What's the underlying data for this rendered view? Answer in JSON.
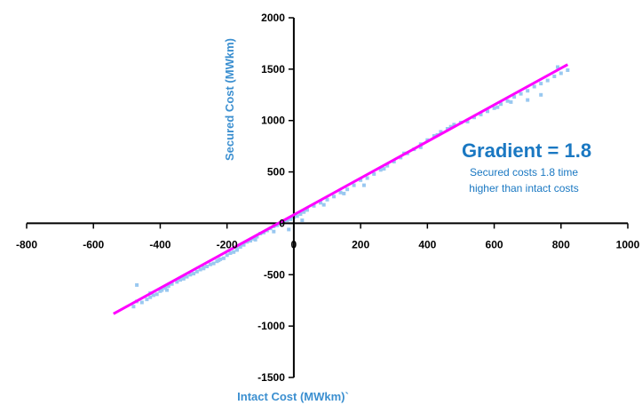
{
  "chart_data": {
    "type": "scatter",
    "xlabel": "Intact Cost (MWkm)`",
    "ylabel": "Secured Cost (MWkm)",
    "xlim": [
      -800,
      1000
    ],
    "ylim": [
      -1500,
      2000
    ],
    "x_ticks": [
      "-800",
      "-600",
      "-400",
      "-200",
      "0",
      "200",
      "400",
      "600",
      "800",
      "1000"
    ],
    "y_ticks": [
      "2000",
      "1500",
      "1000",
      "500",
      "0",
      "-500",
      "-1000",
      "-1500"
    ],
    "x_tick_values": [
      -800,
      -600,
      -400,
      -200,
      0,
      200,
      400,
      600,
      800,
      1000
    ],
    "y_tick_values": [
      2000,
      1500,
      1000,
      500,
      0,
      -500,
      -1000,
      -1500
    ],
    "annotation": {
      "title": "Gradient = 1.8",
      "line1": "Secured costs 1.8 time",
      "line2": "higher than intact costs"
    },
    "series": [
      {
        "type": "scatter",
        "color": "#99c8f0",
        "x": [
          -480,
          -470,
          -455,
          -440,
          -430,
          -420,
          -410,
          -400,
          -395,
          -385,
          -375,
          -365,
          -350,
          -340,
          -330,
          -320,
          -310,
          -300,
          -290,
          -280,
          -270,
          -260,
          -250,
          -240,
          -230,
          -220,
          -210,
          -200,
          -190,
          -180,
          -170,
          -160,
          -150,
          -140,
          -130,
          -120,
          -110,
          -100,
          -90,
          -80,
          -70,
          -60,
          -50,
          -40,
          -30,
          -20,
          -10,
          0,
          10,
          20,
          30,
          40,
          60,
          80,
          100,
          120,
          140,
          160,
          180,
          200,
          220,
          240,
          260,
          280,
          300,
          320,
          340,
          360,
          380,
          400,
          420,
          440,
          460,
          480,
          500,
          520,
          540,
          560,
          580,
          600,
          620,
          640,
          660,
          680,
          700,
          720,
          740,
          760,
          780,
          800,
          820,
          -470,
          -430,
          -380,
          -330,
          -270,
          -225,
          -170,
          -115,
          -60,
          -15,
          25,
          90,
          150,
          210,
          270,
          330,
          380,
          430,
          470,
          520,
          560,
          610,
          650,
          700,
          740,
          790
        ],
        "y": [
          -810,
          -760,
          -770,
          -740,
          -720,
          -700,
          -690,
          -660,
          -650,
          -630,
          -610,
          -590,
          -570,
          -550,
          -540,
          -520,
          -500,
          -490,
          -470,
          -450,
          -440,
          -420,
          -400,
          -390,
          -370,
          -350,
          -340,
          -310,
          -290,
          -280,
          -250,
          -230,
          -210,
          -180,
          -170,
          -150,
          -130,
          -100,
          -90,
          -70,
          -50,
          -30,
          -20,
          0,
          10,
          30,
          40,
          60,
          70,
          90,
          110,
          130,
          170,
          200,
          230,
          260,
          300,
          330,
          370,
          420,
          440,
          480,
          520,
          560,
          600,
          640,
          680,
          720,
          770,
          810,
          850,
          890,
          920,
          960,
          980,
          1000,
          1030,
          1060,
          1090,
          1120,
          1160,
          1190,
          1230,
          1260,
          1290,
          1330,
          1360,
          1390,
          1430,
          1460,
          1490,
          -600,
          -680,
          -650,
          -520,
          -430,
          -360,
          -260,
          -160,
          -80,
          -60,
          30,
          180,
          290,
          370,
          530,
          680,
          740,
          860,
          940,
          990,
          1060,
          1130,
          1180,
          1200,
          1250,
          1520
        ]
      },
      {
        "type": "line",
        "color": "#ff00ff",
        "x": [
          -540,
          820
        ],
        "y": [
          -880,
          1545
        ]
      }
    ]
  }
}
